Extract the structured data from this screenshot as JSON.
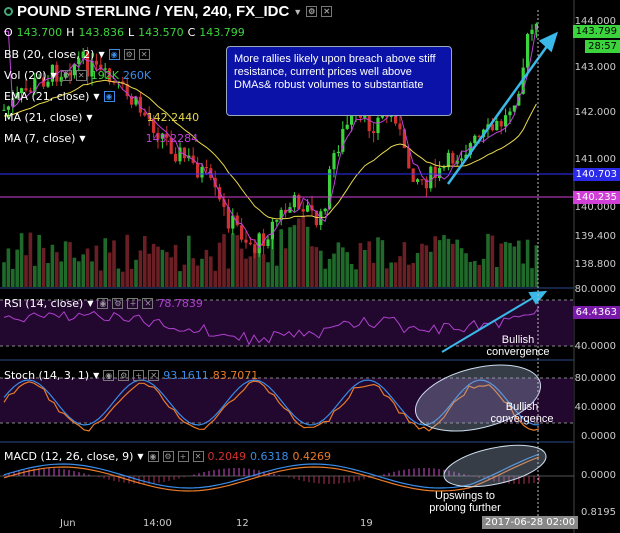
{
  "header": {
    "title": "POUND STERLING / YEN, 240, FX_IDC",
    "ohlc": [
      {
        "k": "O",
        "v": "143.700"
      },
      {
        "k": "H",
        "v": "143.836"
      },
      {
        "k": "L",
        "v": "143.570"
      },
      {
        "k": "C",
        "v": "143.799"
      }
    ]
  },
  "indicators": {
    "bb": "BB (20, close, 2)",
    "vol": "Vol (20)",
    "vol_val1": "192K",
    "vol_val2": "260K",
    "ema": "EMA (21, close)",
    "ma21": "MA (21, close)",
    "ma21_val": "142.2440",
    "ma7": "MA (7, close)",
    "ma7_val": "143.2284",
    "rsi": "RSI (14, close)",
    "rsi_val": "78.7839",
    "stoch": "Stoch (14, 3, 1)",
    "stoch_val1": "93.1611",
    "stoch_val2": "83.7071",
    "macd": "MACD (12, 26, close, 9)",
    "macd_val1": "0.2049",
    "macd_val2": "0.6318",
    "macd_val3": "0.4269"
  },
  "axis": {
    "price_ticks": [
      "144.000",
      "143.000",
      "142.000",
      "141.000",
      "140.000",
      "139.400",
      "138.800"
    ],
    "rsi_ticks": [
      "80.0000",
      "40.0000"
    ],
    "stoch_ticks": [
      "80.0000",
      "40.0000",
      "0.0000"
    ],
    "macd_ticks": [
      "0.0000",
      "0.8195"
    ],
    "x_labels": [
      "Jun",
      "14:00",
      "12",
      "19"
    ],
    "cursor_time": "2017-06-28 02:00"
  },
  "tags": {
    "last_price": "143.799",
    "timer": "28:57",
    "level1": "140.703",
    "level2": "140.235",
    "rsi_last": "64.4363"
  },
  "annotations": {
    "callout": "More rallies likely upon breach above stiff resistance, current prices well above DMAs& robust volumes to substantiate",
    "bullish1": "Bullish convergence",
    "bullish2": "Bullish convergence",
    "upswings": "Upswings to prolong further"
  },
  "colors": {
    "up": "#3cd43c",
    "down": "#d33030",
    "ema": "#e8d84a",
    "ma7": "#c040d8",
    "level1_line": "#3030ff",
    "level2_line": "#d040d8",
    "arrow": "#3ab8e8",
    "stoch_k": "#3a8ce8",
    "stoch_d": "#e87a2a"
  }
}
